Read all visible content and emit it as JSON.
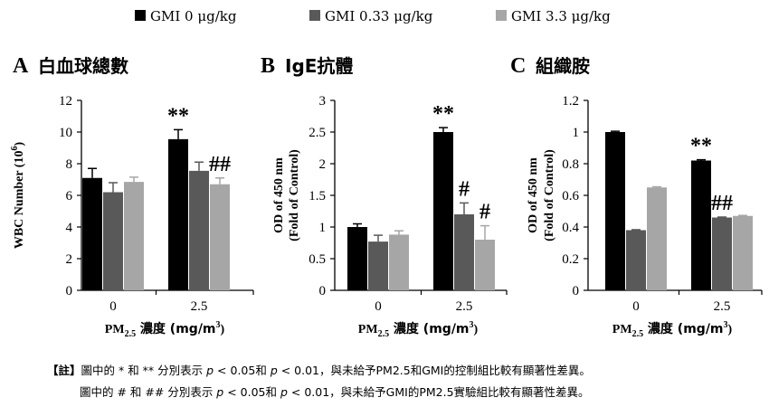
{
  "legend": [
    {
      "label": "GMI 0 μg/kg",
      "color": "#000000"
    },
    {
      "label": "GMI 0.33 μg/kg",
      "color": "#595959"
    },
    {
      "label": "GMI 3.3 μg/kg",
      "color": "#a6a6a6"
    }
  ],
  "chart_data": [
    {
      "type": "bar",
      "panel": "A",
      "title": "白血球總數",
      "ylabel": "WBC Number (10",
      "ylabel_sup": "6",
      "ylabel_end": ")",
      "ylim": [
        0,
        12
      ],
      "yticks": [
        "0",
        "2",
        "4",
        "6",
        "8",
        "10",
        "12"
      ],
      "categories": [
        "0",
        "2.5"
      ],
      "xlabel_pm": "PM",
      "xlabel_sub": "2.5",
      "xlabel_rest": " 濃度 (mg/m",
      "xlabel_sup": "3",
      "xlabel_end": ")",
      "series": [
        {
          "name": "GMI 0 μg/kg",
          "values": [
            7.1,
            9.55
          ],
          "errors": [
            0.6,
            0.6
          ]
        },
        {
          "name": "GMI 0.33 μg/kg",
          "values": [
            6.2,
            7.55
          ],
          "errors": [
            0.6,
            0.55
          ]
        },
        {
          "name": "GMI 3.3 μg/kg",
          "values": [
            6.85,
            6.7
          ],
          "errors": [
            0.3,
            0.4
          ]
        }
      ],
      "annotations": [
        {
          "category": 1,
          "series": 0,
          "text": "**"
        },
        {
          "category": 1,
          "series": 2,
          "text": "##"
        }
      ]
    },
    {
      "type": "bar",
      "panel": "B",
      "title": "IgE抗體",
      "ylabel": "OD of 450 nm",
      "ylabel2": "(Fold of Control)",
      "ylim": [
        0,
        3
      ],
      "yticks": [
        "0",
        "0.5",
        "1",
        "1.5",
        "2",
        "2.5",
        "3"
      ],
      "categories": [
        "0",
        "2.5"
      ],
      "xlabel_pm": "PM",
      "xlabel_sub": "2.5",
      "xlabel_rest": " 濃度 (mg/m",
      "xlabel_sup": "3",
      "xlabel_end": ")",
      "series": [
        {
          "name": "GMI 0 μg/kg",
          "values": [
            1.0,
            2.5
          ],
          "errors": [
            0.05,
            0.07
          ]
        },
        {
          "name": "GMI 0.33 μg/kg",
          "values": [
            0.77,
            1.2
          ],
          "errors": [
            0.1,
            0.18
          ]
        },
        {
          "name": "GMI 3.3 μg/kg",
          "values": [
            0.88,
            0.8
          ],
          "errors": [
            0.06,
            0.22
          ]
        }
      ],
      "annotations": [
        {
          "category": 1,
          "series": 0,
          "text": "**"
        },
        {
          "category": 1,
          "series": 1,
          "text": "#"
        },
        {
          "category": 1,
          "series": 2,
          "text": "#"
        }
      ]
    },
    {
      "type": "bar",
      "panel": "C",
      "title": "組織胺",
      "ylabel": "OD of 450 nm",
      "ylabel2": "(Fold of Control)",
      "ylim": [
        0,
        1.2
      ],
      "yticks": [
        "0",
        "0.2",
        "0.4",
        "0.6",
        "0.8",
        "1",
        "1.2"
      ],
      "categories": [
        "0",
        "2.5"
      ],
      "xlabel_pm": "PM",
      "xlabel_sub": "2.5",
      "xlabel_rest": " 濃度 (mg/m",
      "xlabel_sup": "3",
      "xlabel_end": ")",
      "series": [
        {
          "name": "GMI 0 μg/kg",
          "values": [
            1.0,
            0.82
          ],
          "errors": [
            0.005,
            0.005
          ]
        },
        {
          "name": "GMI 0.33 μg/kg",
          "values": [
            0.38,
            0.46
          ],
          "errors": [
            0.003,
            0.003
          ]
        },
        {
          "name": "GMI 3.3 μg/kg",
          "values": [
            0.65,
            0.47
          ],
          "errors": [
            0.004,
            0.003
          ]
        }
      ],
      "annotations": [
        {
          "category": 1,
          "series": 0,
          "text": "**"
        },
        {
          "category": 1,
          "series": 1,
          "text": "##"
        }
      ]
    }
  ],
  "notes": {
    "line1_prefix": "【註】",
    "line1_body": "圖中的 * 和 ** 分別表示 ",
    "line1_p1": "p",
    "line1_mid": " < 0.05和 ",
    "line1_p2": "p",
    "line1_end": " < 0.01，與未給予PM2.5和GMI的控制組比較有顯著性差異。",
    "line2_body": "圖中的 # 和 ## 分別表示 ",
    "line2_p1": "p",
    "line2_mid": " < 0.05和 ",
    "line2_p2": "p",
    "line2_end": " < 0.01，與未給予GMI的PM2.5實驗組比較有顯著性差異。"
  }
}
